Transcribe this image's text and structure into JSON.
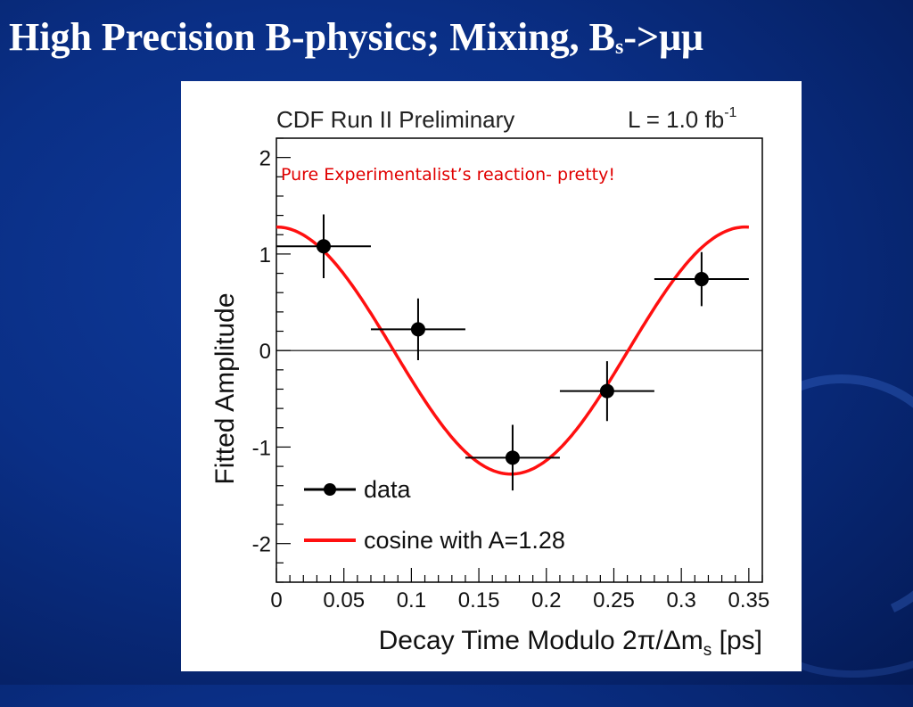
{
  "slide": {
    "title_main": "High Precision B-physics; Mixing, B",
    "title_sub": "s",
    "title_end": "->μμ"
  },
  "chart_data": {
    "type": "scatter",
    "header_left": "CDF Run II Preliminary",
    "header_right_main": "L = 1.0 fb",
    "header_right_sup": "-1",
    "annotation": "Pure Experimentalist’s reaction- pretty!",
    "xlabel_main": "Decay Time Modulo 2π/Δm",
    "xlabel_sub": "s",
    "xlabel_end": " [ps]",
    "ylabel": "Fitted Amplitude",
    "xlim": [
      0,
      0.36
    ],
    "ylim": [
      -2.4,
      2.2
    ],
    "x_ticks": [
      0,
      0.05,
      0.1,
      0.15,
      0.2,
      0.25,
      0.3,
      0.35
    ],
    "x_tick_labels": [
      "0",
      "0.05",
      "0.1",
      "0.15",
      "0.2",
      "0.25",
      "0.3",
      "0.35"
    ],
    "y_ticks": [
      -2,
      -1,
      0,
      1,
      2
    ],
    "y_tick_labels": [
      "-2",
      "-1",
      "0",
      "1",
      "2"
    ],
    "series": [
      {
        "name": "data",
        "kind": "points-with-errors",
        "color": "#000000",
        "x": [
          0.035,
          0.105,
          0.175,
          0.245,
          0.315
        ],
        "y": [
          1.08,
          0.22,
          -1.11,
          -0.42,
          0.74
        ],
        "xerr": [
          0.035,
          0.035,
          0.035,
          0.035,
          0.035
        ],
        "yerr": [
          0.33,
          0.32,
          0.34,
          0.31,
          0.28
        ]
      },
      {
        "name": "cosine with A=1.28",
        "kind": "curve",
        "color": "#ff1010",
        "amplitude": 1.28,
        "period": 0.3475,
        "x_range": [
          0,
          0.35
        ]
      }
    ]
  }
}
